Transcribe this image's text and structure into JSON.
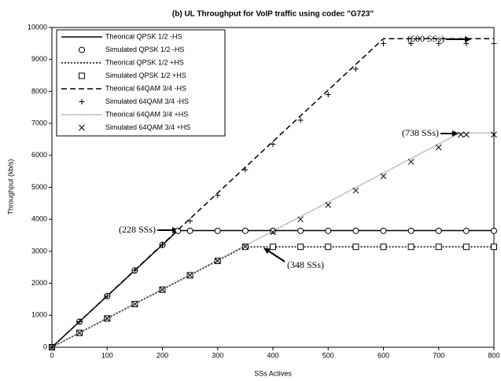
{
  "chart_data": {
    "type": "line",
    "title": "(b) UL Throughput for VoIP traffic using codec \"G723\"",
    "x_label": "SSs Actives",
    "y_label": "Throughput (kb/s)",
    "xlim": [
      0,
      800
    ],
    "xticks": [
      0,
      100,
      200,
      300,
      400,
      500,
      600,
      700,
      800
    ],
    "ylim": [
      0,
      10000
    ],
    "yticks": [
      0,
      1000,
      2000,
      3000,
      4000,
      5000,
      6000,
      7000,
      8000,
      9000,
      10000
    ],
    "legend": "upper left",
    "series": [
      {
        "name": "Theorical QPSK 1/2 -HS",
        "color": "#000000",
        "style": "solid",
        "marker": "none",
        "x": [
          0,
          228,
          800
        ],
        "values": [
          0,
          3650,
          3650
        ]
      },
      {
        "name": "Simulated QPSK 1/2 -HS",
        "color": "#000000",
        "style": "none",
        "marker": "circle",
        "x": [
          0,
          50,
          100,
          150,
          200,
          228,
          250,
          300,
          350,
          400,
          450,
          500,
          550,
          600,
          650,
          700,
          750,
          800
        ],
        "values": [
          0,
          800,
          1600,
          2400,
          3200,
          3640,
          3640,
          3640,
          3640,
          3640,
          3640,
          3640,
          3640,
          3640,
          3640,
          3640,
          3640,
          3640
        ]
      },
      {
        "name": "Theorical QPSK 1/2 +HS",
        "color": "#000000",
        "style": "dotted",
        "marker": "none",
        "x": [
          0,
          348,
          800
        ],
        "values": [
          0,
          3140,
          3140
        ]
      },
      {
        "name": "Simulated QPSK 1/2 +HS",
        "color": "#000000",
        "style": "none",
        "marker": "square",
        "x": [
          0,
          50,
          100,
          150,
          200,
          250,
          300,
          350,
          400,
          450,
          500,
          550,
          600,
          650,
          700,
          750,
          800
        ],
        "values": [
          0,
          450,
          900,
          1350,
          1800,
          2250,
          2700,
          3140,
          3140,
          3140,
          3140,
          3140,
          3140,
          3140,
          3140,
          3140,
          3140
        ]
      },
      {
        "name": "Theorical 64QAM 3/4 -HS",
        "color": "#000000",
        "style": "dashed",
        "marker": "none",
        "x": [
          0,
          600,
          800
        ],
        "values": [
          0,
          9650,
          9650
        ]
      },
      {
        "name": "Simulated 64QAM 3/4 -HS",
        "color": "#000000",
        "style": "none",
        "marker": "plus",
        "x": [
          0,
          50,
          100,
          150,
          200,
          250,
          300,
          350,
          400,
          450,
          500,
          550,
          600,
          650,
          700,
          750,
          800
        ],
        "values": [
          0,
          800,
          1600,
          2400,
          3200,
          3950,
          4750,
          5550,
          6350,
          7100,
          7900,
          8700,
          9500,
          9500,
          9500,
          9500,
          9500
        ]
      },
      {
        "name": "Theorical 64QAM 3/4 +HS",
        "color": "#808080",
        "style": "fine",
        "marker": "none",
        "x": [
          0,
          738,
          800
        ],
        "values": [
          0,
          6700,
          6700
        ]
      },
      {
        "name": "Simulated 64QAM 3/4 +HS",
        "color": "#000000",
        "style": "none",
        "marker": "x",
        "x": [
          0,
          50,
          100,
          150,
          200,
          250,
          300,
          350,
          400,
          450,
          500,
          550,
          600,
          650,
          700,
          740,
          750,
          800
        ],
        "values": [
          0,
          450,
          900,
          1350,
          1800,
          2250,
          2700,
          3150,
          3600,
          4000,
          4450,
          4900,
          5350,
          5800,
          6250,
          6650,
          6650,
          6650
        ]
      }
    ],
    "annotations": [
      "(600 SSs)",
      "(738 SSs)",
      "(228 SSs)",
      "(348 SSs)"
    ]
  }
}
